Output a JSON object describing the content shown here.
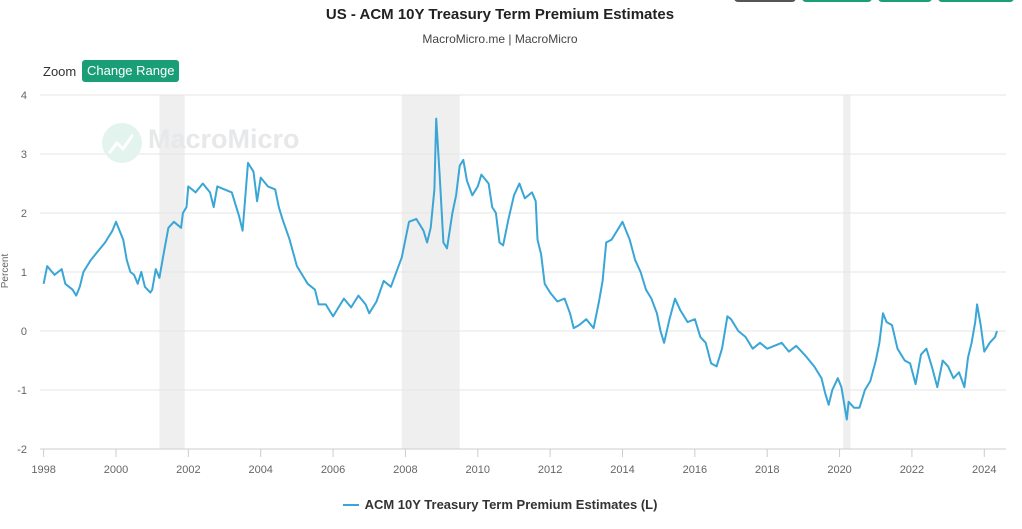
{
  "header": {
    "title": "US - ACM 10Y Treasury Term Premium Estimates",
    "subtitle": "MacroMicro.me | MacroMicro"
  },
  "toolbar": {
    "zoom_label": "Zoom",
    "change_range_label": "Change Range"
  },
  "watermark": {
    "text": "MacroMicro"
  },
  "colors": {
    "series": "#3aa6d6",
    "recession_band": "#efefef",
    "grid": "#e6e6e6",
    "button": "#1a9e77"
  },
  "legend": {
    "label": "ACM 10Y Treasury Term Premium Estimates (L)"
  },
  "chart_data": {
    "type": "line",
    "title": "US - ACM 10Y Treasury Term Premium Estimates",
    "subtitle": "MacroMicro.me | MacroMicro",
    "xlabel": "",
    "ylabel": "Percent",
    "xlim": [
      1997.9,
      2024.6
    ],
    "ylim": [
      -2,
      4
    ],
    "x_ticks": [
      "1998",
      "2000",
      "2002",
      "2004",
      "2006",
      "2008",
      "2010",
      "2012",
      "2014",
      "2016",
      "2018",
      "2020",
      "2022",
      "2024"
    ],
    "y_ticks": [
      "-2",
      "-1",
      "0",
      "1",
      "2",
      "3",
      "4"
    ],
    "grid": true,
    "legend_position": "bottom-center",
    "recession_bands": [
      {
        "start": 2001.2,
        "end": 2001.9
      },
      {
        "start": 2007.9,
        "end": 2009.5
      },
      {
        "start": 2020.1,
        "end": 2020.3
      }
    ],
    "series": [
      {
        "name": "ACM 10Y Treasury Term Premium Estimates (L)",
        "color": "#3aa6d6",
        "points": [
          [
            1998.0,
            0.8
          ],
          [
            1998.1,
            1.1
          ],
          [
            1998.3,
            0.95
          ],
          [
            1998.5,
            1.05
          ],
          [
            1998.6,
            0.8
          ],
          [
            1998.8,
            0.7
          ],
          [
            1998.9,
            0.6
          ],
          [
            1999.0,
            0.75
          ],
          [
            1999.1,
            1.0
          ],
          [
            1999.3,
            1.2
          ],
          [
            1999.5,
            1.35
          ],
          [
            1999.7,
            1.5
          ],
          [
            1999.9,
            1.7
          ],
          [
            2000.0,
            1.85
          ],
          [
            2000.1,
            1.7
          ],
          [
            2000.2,
            1.55
          ],
          [
            2000.3,
            1.2
          ],
          [
            2000.4,
            1.0
          ],
          [
            2000.5,
            0.95
          ],
          [
            2000.6,
            0.8
          ],
          [
            2000.7,
            1.0
          ],
          [
            2000.8,
            0.75
          ],
          [
            2000.95,
            0.65
          ],
          [
            2001.0,
            0.7
          ],
          [
            2001.1,
            1.05
          ],
          [
            2001.2,
            0.9
          ],
          [
            2001.3,
            1.25
          ],
          [
            2001.45,
            1.75
          ],
          [
            2001.6,
            1.85
          ],
          [
            2001.8,
            1.75
          ],
          [
            2001.85,
            2.0
          ],
          [
            2001.95,
            2.1
          ],
          [
            2002.0,
            2.45
          ],
          [
            2002.2,
            2.35
          ],
          [
            2002.4,
            2.5
          ],
          [
            2002.6,
            2.35
          ],
          [
            2002.7,
            2.1
          ],
          [
            2002.8,
            2.45
          ],
          [
            2003.0,
            2.4
          ],
          [
            2003.2,
            2.35
          ],
          [
            2003.4,
            1.95
          ],
          [
            2003.5,
            1.7
          ],
          [
            2003.65,
            2.85
          ],
          [
            2003.8,
            2.7
          ],
          [
            2003.9,
            2.2
          ],
          [
            2004.0,
            2.6
          ],
          [
            2004.2,
            2.45
          ],
          [
            2004.4,
            2.4
          ],
          [
            2004.5,
            2.1
          ],
          [
            2004.6,
            1.9
          ],
          [
            2004.8,
            1.55
          ],
          [
            2005.0,
            1.1
          ],
          [
            2005.1,
            1.0
          ],
          [
            2005.3,
            0.8
          ],
          [
            2005.5,
            0.7
          ],
          [
            2005.6,
            0.45
          ],
          [
            2005.8,
            0.45
          ],
          [
            2005.9,
            0.35
          ],
          [
            2006.0,
            0.25
          ],
          [
            2006.1,
            0.35
          ],
          [
            2006.3,
            0.55
          ],
          [
            2006.5,
            0.4
          ],
          [
            2006.7,
            0.6
          ],
          [
            2006.9,
            0.45
          ],
          [
            2007.0,
            0.3
          ],
          [
            2007.2,
            0.5
          ],
          [
            2007.4,
            0.85
          ],
          [
            2007.6,
            0.75
          ],
          [
            2007.9,
            1.25
          ],
          [
            2008.0,
            1.55
          ],
          [
            2008.1,
            1.85
          ],
          [
            2008.3,
            1.9
          ],
          [
            2008.5,
            1.7
          ],
          [
            2008.6,
            1.5
          ],
          [
            2008.7,
            1.75
          ],
          [
            2008.8,
            2.4
          ],
          [
            2008.85,
            3.6
          ],
          [
            2008.95,
            2.6
          ],
          [
            2009.05,
            1.5
          ],
          [
            2009.15,
            1.4
          ],
          [
            2009.3,
            2.0
          ],
          [
            2009.4,
            2.3
          ],
          [
            2009.5,
            2.8
          ],
          [
            2009.6,
            2.9
          ],
          [
            2009.7,
            2.55
          ],
          [
            2009.85,
            2.3
          ],
          [
            2010.0,
            2.45
          ],
          [
            2010.1,
            2.65
          ],
          [
            2010.3,
            2.5
          ],
          [
            2010.4,
            2.1
          ],
          [
            2010.5,
            2.0
          ],
          [
            2010.6,
            1.5
          ],
          [
            2010.7,
            1.45
          ],
          [
            2010.85,
            1.9
          ],
          [
            2011.0,
            2.3
          ],
          [
            2011.15,
            2.5
          ],
          [
            2011.3,
            2.25
          ],
          [
            2011.5,
            2.35
          ],
          [
            2011.6,
            2.2
          ],
          [
            2011.65,
            1.55
          ],
          [
            2011.75,
            1.3
          ],
          [
            2011.85,
            0.8
          ],
          [
            2012.0,
            0.65
          ],
          [
            2012.2,
            0.5
          ],
          [
            2012.4,
            0.55
          ],
          [
            2012.55,
            0.3
          ],
          [
            2012.65,
            0.05
          ],
          [
            2012.8,
            0.1
          ],
          [
            2013.0,
            0.2
          ],
          [
            2013.2,
            0.05
          ],
          [
            2013.35,
            0.5
          ],
          [
            2013.45,
            0.85
          ],
          [
            2013.55,
            1.5
          ],
          [
            2013.7,
            1.55
          ],
          [
            2013.85,
            1.7
          ],
          [
            2014.0,
            1.85
          ],
          [
            2014.1,
            1.7
          ],
          [
            2014.2,
            1.55
          ],
          [
            2014.35,
            1.2
          ],
          [
            2014.5,
            1.0
          ],
          [
            2014.65,
            0.7
          ],
          [
            2014.8,
            0.55
          ],
          [
            2014.95,
            0.3
          ],
          [
            2015.05,
            0.0
          ],
          [
            2015.15,
            -0.2
          ],
          [
            2015.3,
            0.2
          ],
          [
            2015.45,
            0.55
          ],
          [
            2015.6,
            0.35
          ],
          [
            2015.8,
            0.15
          ],
          [
            2016.0,
            0.2
          ],
          [
            2016.15,
            -0.1
          ],
          [
            2016.3,
            -0.2
          ],
          [
            2016.45,
            -0.55
          ],
          [
            2016.6,
            -0.6
          ],
          [
            2016.75,
            -0.3
          ],
          [
            2016.9,
            0.25
          ],
          [
            2017.0,
            0.2
          ],
          [
            2017.2,
            0.0
          ],
          [
            2017.4,
            -0.1
          ],
          [
            2017.6,
            -0.3
          ],
          [
            2017.8,
            -0.2
          ],
          [
            2018.0,
            -0.3
          ],
          [
            2018.2,
            -0.25
          ],
          [
            2018.4,
            -0.2
          ],
          [
            2018.6,
            -0.35
          ],
          [
            2018.8,
            -0.25
          ],
          [
            2018.95,
            -0.35
          ],
          [
            2019.1,
            -0.45
          ],
          [
            2019.3,
            -0.6
          ],
          [
            2019.5,
            -0.8
          ],
          [
            2019.6,
            -1.05
          ],
          [
            2019.7,
            -1.25
          ],
          [
            2019.8,
            -1.0
          ],
          [
            2019.95,
            -0.8
          ],
          [
            2020.05,
            -0.95
          ],
          [
            2020.2,
            -1.5
          ],
          [
            2020.25,
            -1.2
          ],
          [
            2020.4,
            -1.3
          ],
          [
            2020.55,
            -1.3
          ],
          [
            2020.7,
            -1.0
          ],
          [
            2020.85,
            -0.85
          ],
          [
            2021.0,
            -0.5
          ],
          [
            2021.1,
            -0.2
          ],
          [
            2021.2,
            0.3
          ],
          [
            2021.3,
            0.15
          ],
          [
            2021.45,
            0.1
          ],
          [
            2021.6,
            -0.3
          ],
          [
            2021.8,
            -0.5
          ],
          [
            2021.95,
            -0.55
          ],
          [
            2022.1,
            -0.9
          ],
          [
            2022.25,
            -0.4
          ],
          [
            2022.4,
            -0.3
          ],
          [
            2022.55,
            -0.6
          ],
          [
            2022.7,
            -0.95
          ],
          [
            2022.85,
            -0.5
          ],
          [
            2023.0,
            -0.6
          ],
          [
            2023.15,
            -0.8
          ],
          [
            2023.3,
            -0.7
          ],
          [
            2023.45,
            -0.95
          ],
          [
            2023.55,
            -0.45
          ],
          [
            2023.65,
            -0.2
          ],
          [
            2023.75,
            0.15
          ],
          [
            2023.8,
            0.45
          ],
          [
            2023.9,
            0.1
          ],
          [
            2024.0,
            -0.35
          ],
          [
            2024.15,
            -0.2
          ],
          [
            2024.3,
            -0.1
          ],
          [
            2024.35,
            0.0
          ]
        ]
      }
    ]
  }
}
